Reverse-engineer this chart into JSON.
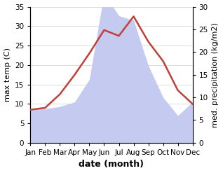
{
  "months": [
    "Jan",
    "Feb",
    "Mar",
    "Apr",
    "May",
    "Jun",
    "Jul",
    "Aug",
    "Sep",
    "Oct",
    "Nov",
    "Dec"
  ],
  "month_x": [
    1,
    2,
    3,
    4,
    5,
    6,
    7,
    8,
    9,
    10,
    11,
    12
  ],
  "temp": [
    8.5,
    9.0,
    12.5,
    17.5,
    23.0,
    29.0,
    27.5,
    32.5,
    26.0,
    21.0,
    13.5,
    10.0
  ],
  "precip": [
    7.5,
    7.5,
    8.0,
    9.0,
    14.0,
    33.0,
    28.0,
    27.0,
    17.0,
    10.0,
    6.0,
    9.0
  ],
  "temp_color": "#c0403a",
  "precip_color": "#c5caf0",
  "background_color": "#ffffff",
  "ylabel_left": "max temp (C)",
  "ylabel_right": "med. precipitation (kg/m2)",
  "xlabel": "date (month)",
  "ylim_left": [
    0,
    35
  ],
  "ylim_right": [
    0,
    30
  ],
  "yticks_left": [
    0,
    5,
    10,
    15,
    20,
    25,
    30,
    35
  ],
  "yticks_right": [
    0,
    5,
    10,
    15,
    20,
    25,
    30
  ],
  "precip_scale_factor": 0.857142,
  "temp_linewidth": 1.8,
  "xlabel_fontsize": 9,
  "ylabel_fontsize": 8,
  "tick_fontsize": 7.5,
  "grid_color": "#d0d0d0"
}
